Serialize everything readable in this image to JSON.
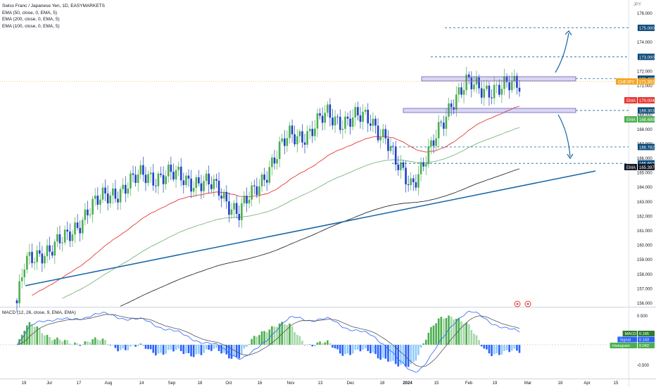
{
  "chart_title": "Swiss Franc / Japanese Yen, 1D, EASYMARKETS",
  "indicators": [
    "EMA (50, close, 0, EMA, 5)",
    "EMA (200, close, 0, EMA, 5)",
    "EMA (100, close, 0, EMA, 5)"
  ],
  "macd_label": "MACD (12, 26, close, 9, EMA, EMA)",
  "currency": "JPY",
  "colors": {
    "up": "#4caf50",
    "down": "#1e40c8",
    "ema50": "#e53935",
    "ema100": "#7cb87c",
    "ema200": "#2a2e39",
    "trendline": "#1565a6",
    "zone": "#6b5fc9",
    "macd_line": "#2962ff",
    "signal_line": "#555555"
  },
  "chart_data": {
    "type": "candlestick",
    "instrument": "CHFJPY",
    "timeframe": "1D",
    "y_ticks": [
      "176.000",
      "175.000",
      "174.000",
      "173.000",
      "172.000",
      "171.000",
      "170.000",
      "169.000",
      "168.000",
      "167.000",
      "166.000",
      "165.000",
      "164.000",
      "163.000",
      "162.000",
      "161.000",
      "160.000",
      "159.000",
      "158.000",
      "157.000",
      "156.000"
    ],
    "ylim": [
      155.8,
      176.6
    ],
    "x_ticks": [
      "19",
      "Jul",
      "17",
      "Aug",
      "14",
      "Sep",
      "18",
      "Oct",
      "16",
      "Nov",
      "13",
      "Dec",
      "18",
      "2024",
      "15",
      "Feb",
      "19",
      "Mar",
      "18",
      "Apr",
      "15"
    ],
    "price_tags": [
      {
        "label": "",
        "value": "175.000",
        "color": "#0d4a78"
      },
      {
        "label": "",
        "value": "173.000",
        "color": "#0d4a78"
      },
      {
        "label": "",
        "value": "171.497",
        "color": "#0d4a78"
      },
      {
        "label": "CHFJPY",
        "value": "171.301",
        "color": "#f5a623"
      },
      {
        "label": "EMA",
        "value": "170.004",
        "color": "#e53935"
      },
      {
        "label": "",
        "value": "169.303",
        "color": "#0d4a78"
      },
      {
        "label": "EMA",
        "value": "168.689",
        "color": "#4caf50"
      },
      {
        "label": "",
        "value": "166.782",
        "color": "#0d4a78"
      },
      {
        "label": "",
        "value": "165.652",
        "color": "#0d4a78"
      },
      {
        "label": "EMA",
        "value": "165.397",
        "color": "#131722"
      }
    ],
    "macd": {
      "y_ticks": [
        "0.500",
        "-0.500"
      ],
      "tags": [
        {
          "label": "MACD",
          "value": "0.185",
          "color": "#2e7d32"
        },
        {
          "label": "Signal",
          "value": "0.143",
          "color": "#2962ff"
        },
        {
          "label": "Histogram",
          "value": "0.042",
          "color": "#4caf50"
        }
      ]
    }
  }
}
